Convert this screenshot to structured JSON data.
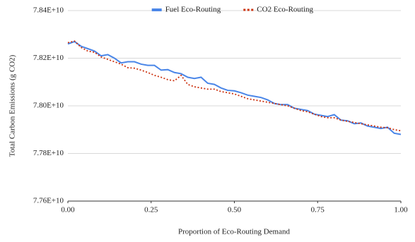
{
  "chart_data": {
    "type": "line",
    "xlabel": "Proportion of Eco-Routing Demand",
    "ylabel": "Total Carbon Emissions (g CO2)",
    "legend": "top",
    "grid": true,
    "x": [
      0,
      0.02,
      0.04,
      0.06,
      0.08,
      0.1,
      0.12,
      0.14,
      0.16,
      0.18,
      0.2,
      0.22,
      0.24,
      0.26,
      0.28,
      0.3,
      0.32,
      0.34,
      0.36,
      0.38,
      0.4,
      0.42,
      0.44,
      0.46,
      0.48,
      0.5,
      0.52,
      0.54,
      0.56,
      0.58,
      0.6,
      0.62,
      0.64,
      0.66,
      0.68,
      0.7,
      0.72,
      0.74,
      0.76,
      0.78,
      0.8,
      0.82,
      0.84,
      0.86,
      0.88,
      0.9,
      0.92,
      0.94,
      0.96,
      0.98,
      1
    ],
    "series": [
      {
        "name": "Fuel Eco-Routing",
        "color": "#4a86e8",
        "dash": false,
        "values": [
          78260000000.0,
          78270000000.0,
          78250000000.0,
          78240000000.0,
          78230000000.0,
          78210000000.0,
          78215000000.0,
          78200000000.0,
          78180000000.0,
          78185000000.0,
          78185000000.0,
          78175000000.0,
          78170000000.0,
          78170000000.0,
          78150000000.0,
          78152000000.0,
          78140000000.0,
          78135000000.0,
          78120000000.0,
          78115000000.0,
          78120000000.0,
          78095000000.0,
          78090000000.0,
          78075000000.0,
          78065000000.0,
          78063000000.0,
          78055000000.0,
          78045000000.0,
          78040000000.0,
          78035000000.0,
          78025000000.0,
          78010000000.0,
          78005000000.0,
          78005000000.0,
          77990000000.0,
          77985000000.0,
          77980000000.0,
          77965000000.0,
          77960000000.0,
          77955000000.0,
          77963000000.0,
          77940000000.0,
          77937000000.0,
          77925000000.0,
          77928000000.0,
          77915000000.0,
          77910000000.0,
          77905000000.0,
          77910000000.0,
          77885000000.0,
          77880000000.0
        ]
      },
      {
        "name": "CO2 Eco-Routing",
        "color": "#cc3311",
        "dash": true,
        "values": [
          78265000000.0,
          78272000000.0,
          78245000000.0,
          78230000000.0,
          78225000000.0,
          78205000000.0,
          78195000000.0,
          78185000000.0,
          78175000000.0,
          78160000000.0,
          78158000000.0,
          78150000000.0,
          78140000000.0,
          78128000000.0,
          78120000000.0,
          78110000000.0,
          78105000000.0,
          78128000000.0,
          78090000000.0,
          78080000000.0,
          78075000000.0,
          78070000000.0,
          78070000000.0,
          78060000000.0,
          78055000000.0,
          78050000000.0,
          78040000000.0,
          78030000000.0,
          78025000000.0,
          78020000000.0,
          78015000000.0,
          78010000000.0,
          78005000000.0,
          78000000000.0,
          77990000000.0,
          77980000000.0,
          77975000000.0,
          77965000000.0,
          77955000000.0,
          77950000000.0,
          77950000000.0,
          77940000000.0,
          77935000000.0,
          77930000000.0,
          77925000000.0,
          77920000000.0,
          77915000000.0,
          77910000000.0,
          77908000000.0,
          77900000000.0,
          77895000000.0
        ]
      }
    ],
    "xlim": [
      0,
      1
    ],
    "xticks": [
      {
        "value": 0,
        "label": "0.00"
      },
      {
        "value": 0.25,
        "label": "0.25"
      },
      {
        "value": 0.5,
        "label": "0.50"
      },
      {
        "value": 0.75,
        "label": "0.75"
      },
      {
        "value": 1,
        "label": "1.00"
      }
    ],
    "ylim": [
      77600000000.0,
      78400000000.0
    ],
    "yticks": [
      {
        "value": 77600000000.0,
        "label": "7.76E+10"
      },
      {
        "value": 77800000000.0,
        "label": "7.78E+10"
      },
      {
        "value": 78000000000.0,
        "label": "7.80E+10"
      },
      {
        "value": 78200000000.0,
        "label": "7.82E+10"
      },
      {
        "value": 78400000000.0,
        "label": "7.84E+10"
      }
    ]
  }
}
